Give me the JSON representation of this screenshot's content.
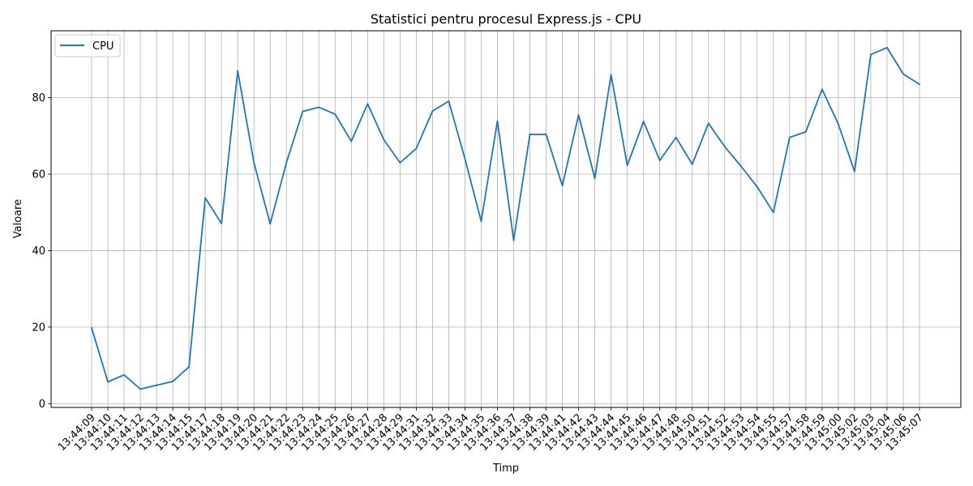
{
  "chart_data": {
    "type": "line",
    "title": "Statistici pentru procesul Express.js - CPU",
    "xlabel": "Timp",
    "ylabel": "Valoare",
    "ylim": [
      -1,
      97.5
    ],
    "yticks": [
      0,
      20,
      40,
      60,
      80
    ],
    "grid": true,
    "legend_position": "top-left",
    "x": [
      "13:44:09",
      "13:44:10",
      "13:44:11",
      "13:44:12",
      "13:44:13",
      "13:44:14",
      "13:44:15",
      "13:44:17",
      "13:44:18",
      "13:44:19",
      "13:44:20",
      "13:44:21",
      "13:44:22",
      "13:44:23",
      "13:44:24",
      "13:44:25",
      "13:44:26",
      "13:44:27",
      "13:44:28",
      "13:44:29",
      "13:44:31",
      "13:44:32",
      "13:44:33",
      "13:44:34",
      "13:44:35",
      "13:44:36",
      "13:44:37",
      "13:44:38",
      "13:44:39",
      "13:44:41",
      "13:44:42",
      "13:44:43",
      "13:44:44",
      "13:44:45",
      "13:44:46",
      "13:44:47",
      "13:44:48",
      "13:44:50",
      "13:44:51",
      "13:44:52",
      "13:44:53",
      "13:44:54",
      "13:44:55",
      "13:44:57",
      "13:44:58",
      "13:44:59",
      "13:45:00",
      "13:45:02",
      "13:45:03",
      "13:45:04",
      "13:45:06",
      "13:45:07"
    ],
    "series": [
      {
        "name": "CPU",
        "color": "#1f77b4",
        "values": [
          19.8,
          5.7,
          7.5,
          3.8,
          4.8,
          5.8,
          9.6,
          53.8,
          47.1,
          87.0,
          63.0,
          47.0,
          63.0,
          76.4,
          77.5,
          75.7,
          68.6,
          78.4,
          69.0,
          63.0,
          66.7,
          76.5,
          79.1,
          64.0,
          47.7,
          73.9,
          42.7,
          70.4,
          70.4,
          57.0,
          75.5,
          58.9,
          86.0,
          62.3,
          73.8,
          63.6,
          69.6,
          62.6,
          73.3,
          67.2,
          62.1,
          56.7,
          50.0,
          69.6,
          71.1,
          82.2,
          73.1,
          60.7,
          91.3,
          93.1,
          86.2,
          83.5
        ]
      }
    ]
  }
}
